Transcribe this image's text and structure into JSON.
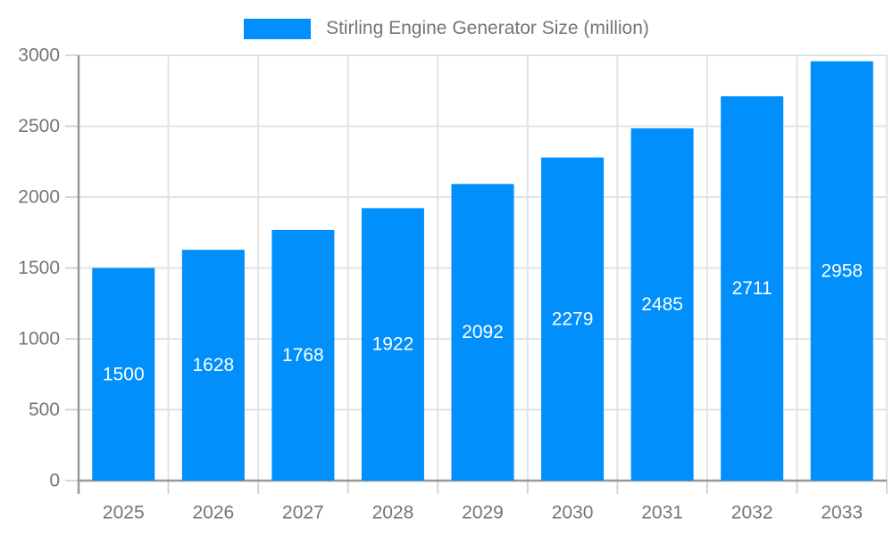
{
  "legend": {
    "label": "Stirling Engine Generator Size (million)",
    "swatch_color": "#008FFB"
  },
  "chart_data": {
    "type": "bar",
    "title": "Stirling Engine Generator Size (million)",
    "categories": [
      "2025",
      "2026",
      "2027",
      "2028",
      "2029",
      "2030",
      "2031",
      "2032",
      "2033"
    ],
    "series": [
      {
        "name": "Stirling Engine Generator Size (million)",
        "values": [
          1500,
          1628,
          1768,
          1922,
          2092,
          2279,
          2485,
          2711,
          2958
        ]
      }
    ],
    "xlabel": "",
    "ylabel": "",
    "ylim": [
      0,
      3000
    ],
    "yticks": [
      0,
      500,
      1000,
      1500,
      2000,
      2500,
      3000
    ],
    "grid": true,
    "legend_position": "top",
    "data_labels": "inside-center"
  },
  "colors": {
    "bar": "#008FFB",
    "bar_value_label": "#ffffff",
    "axis_label": "#757575",
    "gridline": "#e3e3e3",
    "axis_line": "#999999",
    "tick": "#d6d6d6"
  }
}
